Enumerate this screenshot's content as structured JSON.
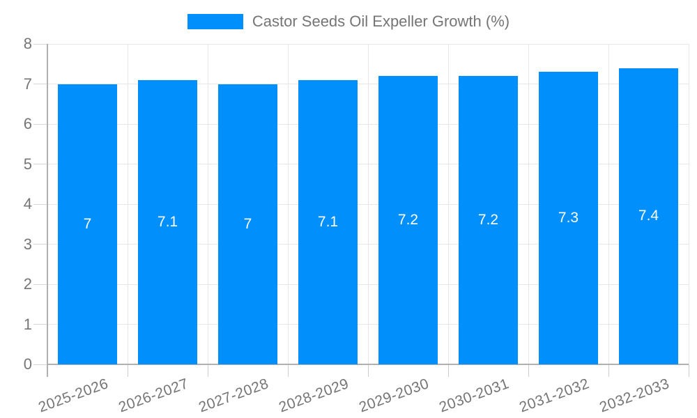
{
  "legend": {
    "label": "Castor Seeds Oil Expeller Growth (%)"
  },
  "chart_data": {
    "type": "bar",
    "title": "Castor Seeds Oil Expeller Growth (%)",
    "categories": [
      "2025-2026",
      "2026-2027",
      "2027-2028",
      "2028-2029",
      "2029-2030",
      "2030-2031",
      "2031-2032",
      "2032-2033"
    ],
    "values": [
      7,
      7.1,
      7,
      7.1,
      7.2,
      7.2,
      7.3,
      7.4
    ],
    "bar_labels": [
      "7",
      "7.1",
      "7",
      "7.1",
      "7.2",
      "7.2",
      "7.3",
      "7.4"
    ],
    "xlabel": "",
    "ylabel": "",
    "ylim": [
      0,
      8
    ],
    "yticks": [
      0,
      1,
      2,
      3,
      4,
      5,
      6,
      7,
      8
    ],
    "grid": true,
    "legend_position": "top",
    "colors": {
      "bar": "#008FFB",
      "bar_label": "#FFFFFF",
      "axis_text": "#757575",
      "gridline": "#E6E6E6",
      "axis_line": "#B0B0B0",
      "tick": "#CCCCCC"
    }
  }
}
